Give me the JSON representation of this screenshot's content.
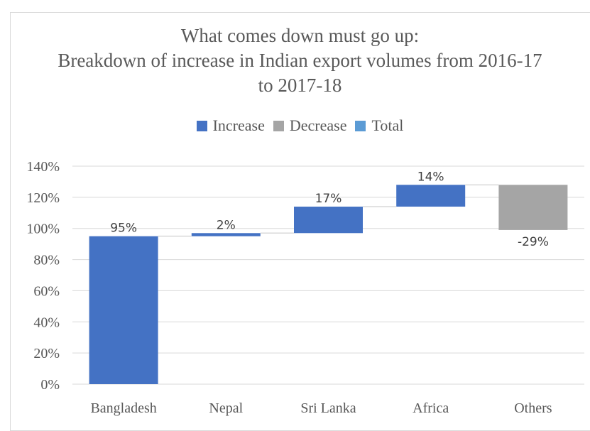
{
  "chart_data": {
    "type": "waterfall",
    "title_lines": [
      "What comes down must go up:",
      "Breakdown of increase in Indian export volumes from 2016-17",
      "to 2017-18"
    ],
    "legend": [
      {
        "label": "Increase",
        "color": "#4472c4"
      },
      {
        "label": "Decrease",
        "color": "#a5a5a5"
      },
      {
        "label": "Total",
        "color": "#5b9bd5"
      }
    ],
    "categories": [
      "Bangladesh",
      "Nepal",
      "Sri Lanka",
      "Africa",
      "Others"
    ],
    "values": [
      95,
      2,
      17,
      14,
      -29
    ],
    "data_labels": [
      "95%",
      "2%",
      "17%",
      "14%",
      "-29%"
    ],
    "y_ticks": [
      "0%",
      "20%",
      "40%",
      "60%",
      "80%",
      "100%",
      "120%",
      "140%"
    ],
    "ylim": [
      0,
      140
    ],
    "grid": true,
    "legend_position": "top"
  }
}
